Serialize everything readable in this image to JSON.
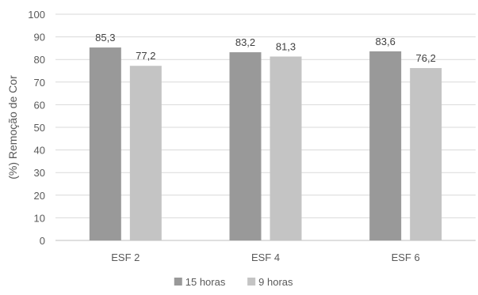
{
  "chart_data": {
    "type": "bar",
    "title": "",
    "xlabel": "",
    "ylabel": "(%) Remoção de Cor",
    "categories": [
      "ESF 2",
      "ESF 4",
      "ESF 6"
    ],
    "series": [
      {
        "name": "15 horas",
        "values": [
          85.3,
          83.2,
          83.6
        ],
        "labels": [
          "85,3",
          "83,2",
          "83,6"
        ],
        "color": "#999999"
      },
      {
        "name": "9 horas",
        "values": [
          77.2,
          81.3,
          76.2
        ],
        "labels": [
          "77,2",
          "81,3",
          "76,2"
        ],
        "color": "#c4c4c4"
      }
    ],
    "ylim": [
      0,
      100
    ],
    "yticks": [
      "0",
      "10",
      "20",
      "30",
      "40",
      "50",
      "60",
      "70",
      "80",
      "90",
      "100"
    ],
    "grid": true,
    "legend_position": "bottom"
  }
}
